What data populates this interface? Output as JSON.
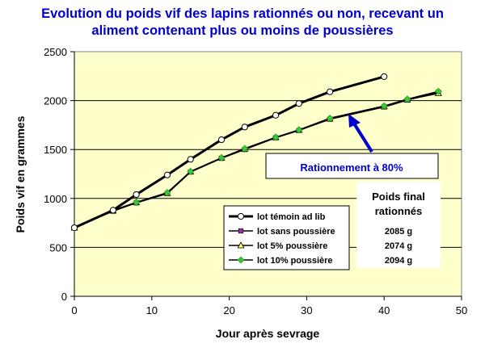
{
  "colors": {
    "title": "#0000CC",
    "plot_background": "#FFFFCC",
    "temoin_line": "#000000",
    "rationed_line": "#000000",
    "marker_sans_poussiere": "#993399",
    "marker_5pct": "#FFFF66",
    "marker_10pct": "#33CC33",
    "arrow": "#0000CC",
    "annotation_text": "#0000CC"
  },
  "chart_data": {
    "type": "line",
    "title": [
      "Evolution du poids vif des lapins rationnés ou non, recevant un",
      "aliment contenant plus ou moins de poussières"
    ],
    "xlabel": "Jour après sevrage",
    "ylabel": "Poids vif en grammes",
    "xlim": [
      0,
      50
    ],
    "ylim": [
      0,
      2500
    ],
    "xticks": [
      "0",
      "10",
      "20",
      "30",
      "40",
      "50"
    ],
    "yticks": [
      "0",
      "500",
      "1000",
      "1500",
      "2000",
      "2500"
    ],
    "grid": "horizontal",
    "legend_position": "bottom-center",
    "series": [
      {
        "name": "lot témoin ad lib",
        "marker": "circle",
        "x": [
          0,
          5,
          8,
          12,
          15,
          19,
          22,
          26,
          29,
          33,
          40
        ],
        "y": [
          700,
          880,
          1040,
          1240,
          1400,
          1600,
          1730,
          1850,
          1970,
          2090,
          2245
        ]
      },
      {
        "name": "lot sans poussière",
        "marker": "square",
        "x": [
          0,
          5,
          8,
          12,
          15,
          19,
          22,
          26,
          29,
          33,
          40,
          43,
          47
        ],
        "y": [
          700,
          870,
          955,
          1050,
          1270,
          1410,
          1500,
          1620,
          1695,
          1810,
          1935,
          2005,
          2085
        ]
      },
      {
        "name": "lot 5% poussière",
        "marker": "triangle",
        "x": [
          0,
          5,
          8,
          12,
          15,
          19,
          22,
          26,
          29,
          33,
          40,
          43,
          47
        ],
        "y": [
          700,
          875,
          960,
          1055,
          1275,
          1415,
          1505,
          1625,
          1700,
          1815,
          1940,
          2010,
          2074
        ]
      },
      {
        "name": "lot 10% poussière",
        "marker": "diamond",
        "x": [
          0,
          5,
          8,
          12,
          15,
          19,
          22,
          26,
          29,
          33,
          40,
          43,
          47
        ],
        "y": [
          700,
          880,
          960,
          1060,
          1275,
          1415,
          1510,
          1625,
          1700,
          1820,
          1945,
          2015,
          2094
        ]
      }
    ],
    "annotations": {
      "rationnement_label": "Rationnement à 80%",
      "final_weight_header": [
        "Poids final",
        "rationnés"
      ],
      "final_weights": [
        "2085 g",
        "2074 g",
        "2094 g"
      ]
    }
  }
}
